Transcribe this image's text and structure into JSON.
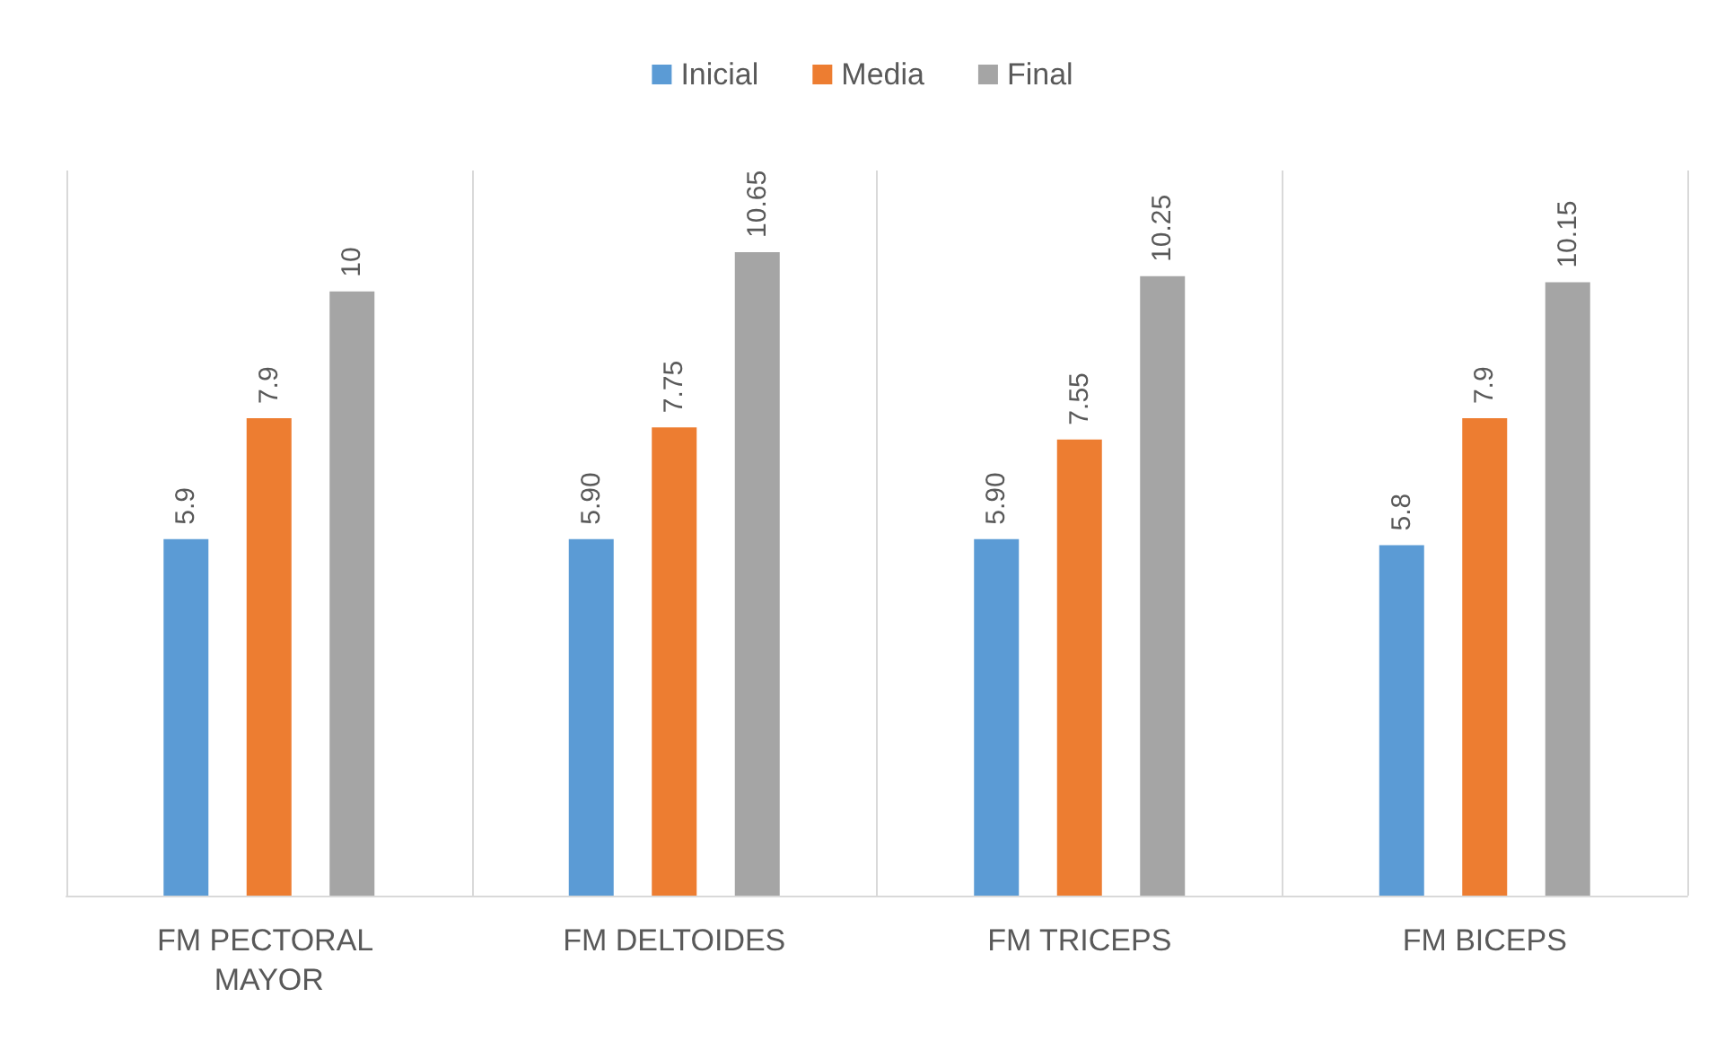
{
  "chart_data": {
    "type": "bar",
    "categories": [
      "FM PECTORAL MAYOR",
      "FM DELTOIDES",
      "FM TRICEPS",
      "FM BICEPS"
    ],
    "series": [
      {
        "name": "Inicial",
        "color": "#5b9bd5",
        "values": [
          5.9,
          5.9,
          5.9,
          5.8
        ],
        "value_labels": [
          "5.9",
          "5.90",
          "5.90",
          "5.8"
        ]
      },
      {
        "name": "Media",
        "color": "#ed7d31",
        "values": [
          7.9,
          7.75,
          7.55,
          7.9
        ],
        "value_labels": [
          "7.9",
          "7.75",
          "7.55",
          "7.9"
        ]
      },
      {
        "name": "Final",
        "color": "#a5a5a5",
        "values": [
          10,
          10.65,
          10.25,
          10.15
        ],
        "value_labels": [
          "10",
          "10.65",
          "10.25",
          "10.15"
        ]
      }
    ],
    "grid": "x",
    "legend": "top"
  }
}
